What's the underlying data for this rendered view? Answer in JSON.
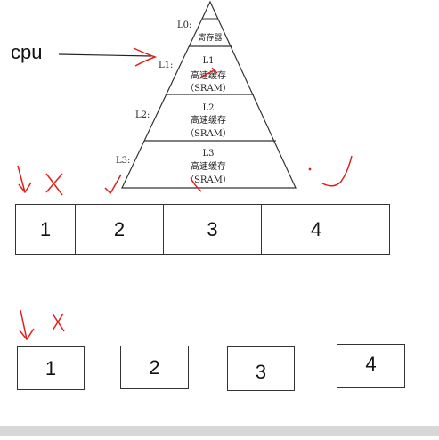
{
  "cpu_label": "cpu",
  "pyramid": {
    "levels": [
      {
        "level": "L0:",
        "name": "",
        "desc": "寄存器",
        "tech": ""
      },
      {
        "level": "L1:",
        "name": "L1",
        "desc": "高速缓存",
        "tech": "（SRAM）"
      },
      {
        "level": "L2:",
        "name": "L2",
        "desc": "高速缓存",
        "tech": "（SRAM）"
      },
      {
        "level": "L3:",
        "name": "L3",
        "desc": "高速缓存",
        "tech": "（SRAM）"
      }
    ]
  },
  "row1": {
    "cells": [
      "1",
      "2",
      "3",
      "4"
    ]
  },
  "row2": {
    "boxes": [
      "1",
      "2",
      "3",
      "4"
    ]
  },
  "colors": {
    "annotation": "#e0201b",
    "line": "#333333"
  }
}
